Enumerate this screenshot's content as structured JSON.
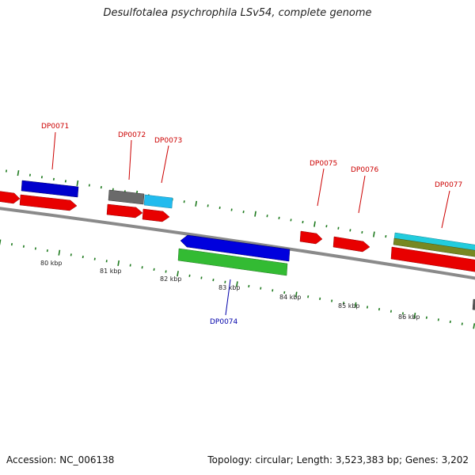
{
  "title": "Desulfotalea psychrophila LSv54, complete genome",
  "footer": {
    "accession": "Accession: NC_006138",
    "topology": "Topology: circular; Length: 3,523,383 bp; Genes: 3,202"
  },
  "colors": {
    "backbone": "#8a8a8a",
    "tick": "#1e7a1e",
    "cds": "#e80000",
    "blue": "#0000cc",
    "green": "#33bb33",
    "gray": "#666666",
    "cyan": "#22bbee",
    "olive": "#778822",
    "label_red": "#cc0000",
    "label_blue": "#0000aa"
  },
  "scale": {
    "labels": [
      "80 kbp",
      "81 kbp",
      "82 kbp",
      "83 kbp",
      "84 kbp",
      "85 kbp",
      "86 kbp"
    ]
  },
  "genes": [
    {
      "name": "DP0071",
      "color": "label_red"
    },
    {
      "name": "DP0072",
      "color": "label_red"
    },
    {
      "name": "DP0073",
      "color": "label_red"
    },
    {
      "name": "DP0074",
      "color": "label_blue"
    },
    {
      "name": "DP0075",
      "color": "label_red"
    },
    {
      "name": "DP0076",
      "color": "label_red"
    },
    {
      "name": "DP0077",
      "color": "label_red"
    }
  ]
}
